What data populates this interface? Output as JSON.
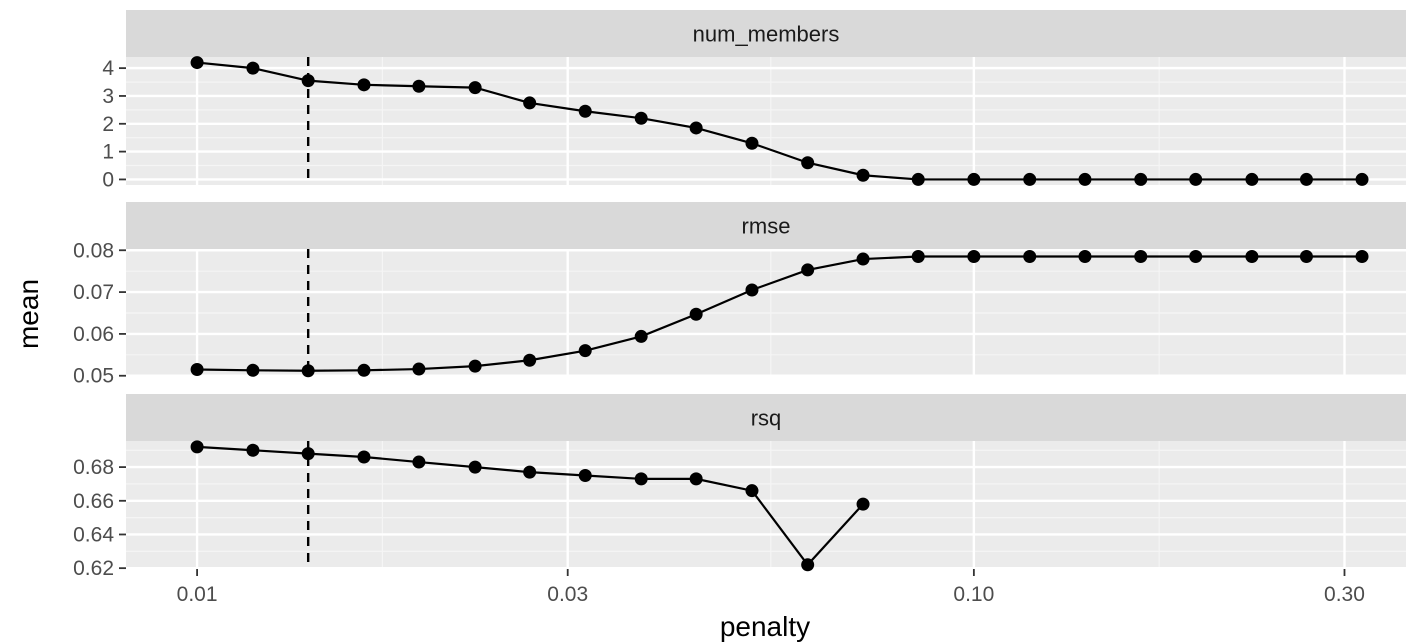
{
  "chart_data": {
    "type": "line",
    "xlabel": "penalty",
    "ylabel": "mean",
    "x_scale": "log10",
    "x_ticks": [
      0.01,
      0.03,
      0.1,
      0.3
    ],
    "x_tick_labels": [
      "0.01",
      "0.03",
      "0.10",
      "0.30"
    ],
    "xlim": [
      0.0081,
      0.36
    ],
    "x": [
      0.01,
      0.0118,
      0.0139,
      0.0164,
      0.0193,
      0.0228,
      0.0268,
      0.0316,
      0.0373,
      0.0439,
      0.0518,
      0.0611,
      0.072,
      0.0848,
      0.1,
      0.118,
      0.139,
      0.164,
      0.193,
      0.228,
      0.268,
      0.316
    ],
    "vline_x": 0.0139,
    "grid": true,
    "point_color": "#000000",
    "panel_background": "#ebebeb",
    "strip_background": "#d9d9d9",
    "facets": [
      {
        "name": "num_members",
        "values": [
          4.2,
          4.0,
          3.55,
          3.4,
          3.35,
          3.3,
          2.75,
          2.45,
          2.2,
          1.85,
          1.3,
          0.6,
          0.15,
          0,
          0,
          0,
          0,
          0,
          0,
          0,
          0,
          0
        ],
        "ylim": [
          -0.2,
          4.4
        ],
        "y_ticks": [
          0,
          1,
          2,
          3,
          4
        ],
        "y_tick_labels": [
          "0",
          "1",
          "2",
          "3",
          "4"
        ]
      },
      {
        "name": "rmse",
        "values": [
          0.0515,
          0.0513,
          0.0512,
          0.0513,
          0.0516,
          0.0523,
          0.0537,
          0.056,
          0.0594,
          0.0647,
          0.0705,
          0.0753,
          0.0779,
          0.0785,
          0.0785,
          0.0785,
          0.0785,
          0.0785,
          0.0785,
          0.0785,
          0.0785,
          0.0785
        ],
        "ylim": [
          0.0497,
          0.0803
        ],
        "y_ticks": [
          0.05,
          0.06,
          0.07,
          0.08
        ],
        "y_tick_labels": [
          "0.05",
          "0.06",
          "0.07",
          "0.08"
        ]
      },
      {
        "name": "rsq",
        "values": [
          0.692,
          0.69,
          0.688,
          0.686,
          0.683,
          0.68,
          0.677,
          0.675,
          0.673,
          0.673,
          0.666,
          0.622,
          0.658,
          null,
          null,
          null,
          null,
          null,
          null,
          null,
          null,
          null
        ],
        "ylim": [
          0.6195,
          0.6955
        ],
        "y_ticks": [
          0.62,
          0.64,
          0.66,
          0.68
        ],
        "y_tick_labels": [
          "0.62",
          "0.64",
          "0.66",
          "0.68"
        ]
      }
    ]
  }
}
